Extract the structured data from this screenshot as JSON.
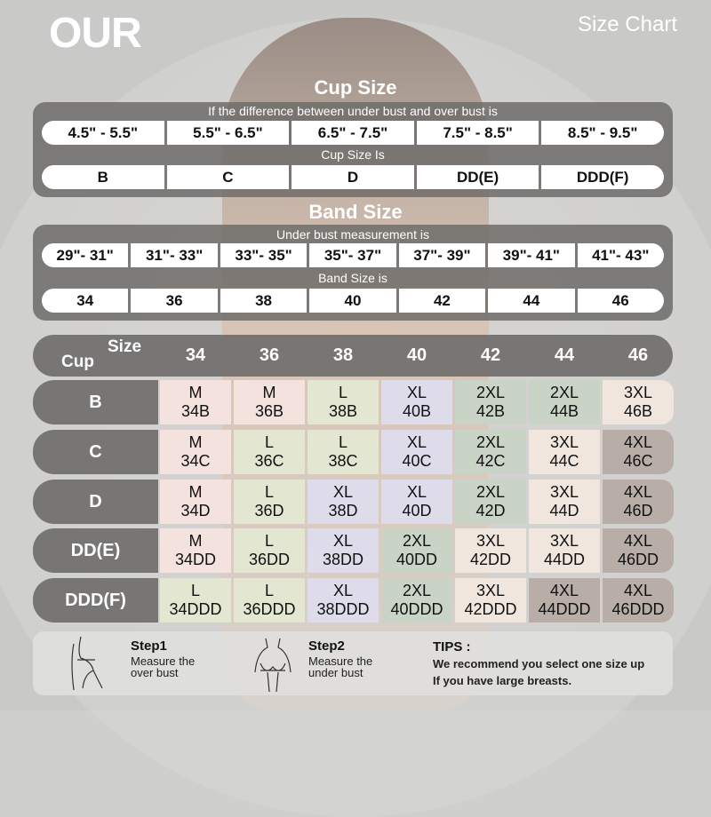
{
  "header": {
    "logo": "OUR",
    "title": "Size Chart"
  },
  "cup_section": {
    "title": "Cup Size",
    "difference_caption": "If the  difference between under bust and over bust is",
    "ranges": [
      "4.5\" -  5.5\"",
      "5.5\" -  6.5\"",
      "6.5\" -  7.5\"",
      "7.5\" -  8.5\"",
      "8.5\" -  9.5\""
    ],
    "result_caption": "Cup Size Is",
    "cups": [
      "B",
      "C",
      "D",
      "DD(E)",
      "DDD(F)"
    ]
  },
  "band_section": {
    "title": "Band Size",
    "measure_caption": "Under bust measurement is",
    "ranges": [
      "29\"- 31\"",
      "31\"- 33\"",
      "33\"- 35\"",
      "35\"- 37\"",
      "37\"- 39\"",
      "39\"- 41\"",
      "41\"- 43\""
    ],
    "result_caption": "Band Size is",
    "bands": [
      "34",
      "36",
      "38",
      "40",
      "42",
      "44",
      "46"
    ]
  },
  "table": {
    "cup_label": "Cup",
    "size_label": "Size",
    "columns": [
      "34",
      "36",
      "38",
      "40",
      "42",
      "44",
      "46"
    ],
    "rows": [
      {
        "label": "B",
        "cells": [
          [
            "M",
            "34B"
          ],
          [
            "M",
            "36B"
          ],
          [
            "L",
            "38B"
          ],
          [
            "XL",
            "40B"
          ],
          [
            "2XL",
            "42B"
          ],
          [
            "2XL",
            "44B"
          ],
          [
            "3XL",
            "46B"
          ]
        ]
      },
      {
        "label": "C",
        "cells": [
          [
            "M",
            "34C"
          ],
          [
            "L",
            "36C"
          ],
          [
            "L",
            "38C"
          ],
          [
            "XL",
            "40C"
          ],
          [
            "2XL",
            "42C"
          ],
          [
            "3XL",
            "44C"
          ],
          [
            "4XL",
            "46C"
          ]
        ]
      },
      {
        "label": "D",
        "cells": [
          [
            "M",
            "34D"
          ],
          [
            "L",
            "36D"
          ],
          [
            "XL",
            "38D"
          ],
          [
            "XL",
            "40D"
          ],
          [
            "2XL",
            "42D"
          ],
          [
            "3XL",
            "44D"
          ],
          [
            "4XL",
            "46D"
          ]
        ]
      },
      {
        "label": "DD(E)",
        "cells": [
          [
            "M",
            "34DD"
          ],
          [
            "L",
            "36DD"
          ],
          [
            "XL",
            "38DD"
          ],
          [
            "2XL",
            "40DD"
          ],
          [
            "3XL",
            "42DD"
          ],
          [
            "3XL",
            "44DD"
          ],
          [
            "4XL",
            "46DD"
          ]
        ]
      },
      {
        "label": "DDD(F)",
        "cells": [
          [
            "L",
            "34DDD"
          ],
          [
            "L",
            "36DDD"
          ],
          [
            "XL",
            "38DDD"
          ],
          [
            "2XL",
            "40DDD"
          ],
          [
            "3XL",
            "42DDD"
          ],
          [
            "4XL",
            "44DDD"
          ],
          [
            "4XL",
            "46DDD"
          ]
        ]
      }
    ],
    "size_colors": {
      "M": "#f3e2dd",
      "L": "#e3e6d0",
      "XL": "#dedbeb",
      "2XL": "#c9d4c7",
      "3XL": "#f1e6de",
      "4XL": "#b9aea7"
    }
  },
  "footer": {
    "step1": {
      "title": "Step1",
      "text1": "Measure the",
      "text2": "over bust",
      "icon": "over-bust-figure-icon"
    },
    "step2": {
      "title": "Step2",
      "text1": "Measure the",
      "text2": "under bust",
      "icon": "under-bust-figure-icon"
    },
    "tips": {
      "title": "TIPS :",
      "line1": "We recommend you select one size up",
      "line2": "If you have large breasts."
    }
  }
}
